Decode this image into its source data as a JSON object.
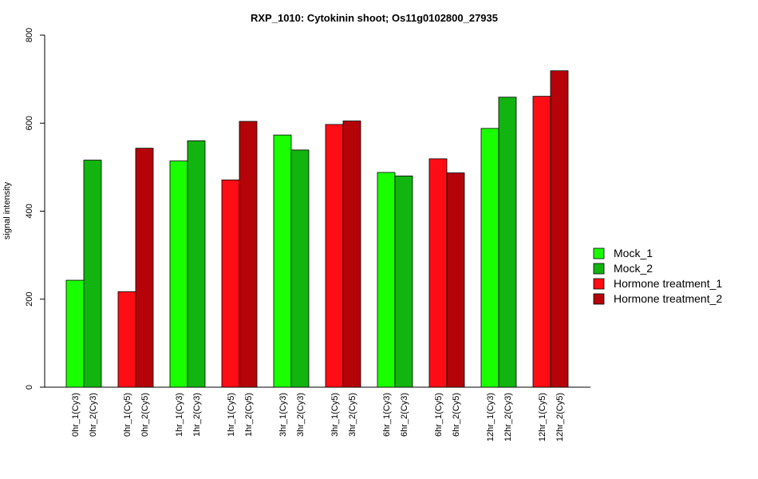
{
  "chart_data": {
    "type": "bar",
    "title": "RXP_1010: Cytokinin shoot; Os11g0102800_27935",
    "xlabel": "",
    "ylabel": "signal intensity",
    "ylim": [
      0,
      800
    ],
    "yticks": [
      "0",
      "200",
      "400",
      "600",
      "800"
    ],
    "categories": [
      "0hr_1(Cy3)",
      "0hr_2(Cy3)",
      "0hr_1(Cy5)",
      "0hr_2(Cy5)",
      "1hr_1(Cy3)",
      "1hr_2(Cy3)",
      "1hr_1(Cy5)",
      "1hr_2(Cy5)",
      "3hr_1(Cy3)",
      "3hr_2(Cy3)",
      "3hr_1(Cy5)",
      "3hr_2(Cy5)",
      "6hr_1(Cy3)",
      "6hr_2(Cy3)",
      "6hr_1(Cy5)",
      "6hr_2(Cy5)",
      "12hr_1(Cy3)",
      "12hr_2(Cy3)",
      "12hr_1(Cy5)",
      "12hr_2(Cy5)"
    ],
    "values": [
      243,
      516,
      217,
      543,
      514,
      560,
      471,
      604,
      573,
      539,
      597,
      605,
      488,
      480,
      519,
      487,
      588,
      659,
      661,
      719
    ],
    "bar_series": [
      0,
      1,
      2,
      3,
      0,
      1,
      2,
      3,
      0,
      1,
      2,
      3,
      0,
      1,
      2,
      3,
      0,
      1,
      2,
      3
    ],
    "series": [
      {
        "name": "Mock_1",
        "color": "#1aff00"
      },
      {
        "name": "Mock_2",
        "color": "#12b40f"
      },
      {
        "name": "Hormone treatment_1",
        "color": "#ff0d14"
      },
      {
        "name": "Hormone treatment_2",
        "color": "#b40309"
      }
    ],
    "legend_position": "right",
    "grid": false
  }
}
